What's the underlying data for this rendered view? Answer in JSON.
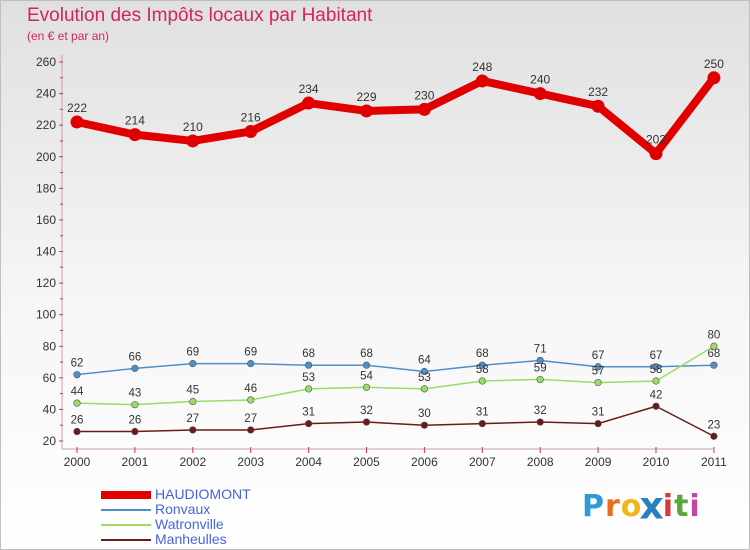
{
  "title": "Evolution des Impôts locaux par Habitant",
  "subtitle": "(en € et par an)",
  "chart_data": {
    "type": "line",
    "title": "Evolution des Impôts locaux par Habitant",
    "subtitle": "(en € et par an)",
    "xlabel": "",
    "ylabel": "",
    "categories": [
      "2000",
      "2001",
      "2002",
      "2003",
      "2004",
      "2005",
      "2006",
      "2007",
      "2008",
      "2009",
      "2010",
      "2011"
    ],
    "ylim": [
      20,
      260
    ],
    "yticks": [
      20,
      40,
      60,
      80,
      100,
      120,
      140,
      160,
      180,
      200,
      220,
      240,
      260
    ],
    "grid": false,
    "series": [
      {
        "name": "HAUDIOMONT",
        "color": "#e00000",
        "emphasis": true,
        "values": [
          222,
          214,
          210,
          216,
          234,
          229,
          230,
          248,
          240,
          232,
          202,
          250
        ],
        "labels": [
          "222",
          "214",
          "210",
          "216",
          "234",
          "229",
          "230",
          "248",
          "240",
          "232",
          "202",
          "250"
        ]
      },
      {
        "name": "Ronvaux",
        "color": "#4f8fc6",
        "values": [
          62,
          66,
          69,
          69,
          68,
          68,
          64,
          68,
          71,
          67,
          67,
          68
        ],
        "labels": [
          "62",
          "66",
          "69",
          "69",
          "68",
          "68",
          "64",
          "68",
          "71",
          "67",
          "67",
          "68"
        ]
      },
      {
        "name": "Watronville",
        "color": "#99dd66",
        "values": [
          44,
          43,
          45,
          46,
          53,
          54,
          53,
          58,
          59,
          57,
          58,
          80
        ],
        "labels": [
          "44",
          "43",
          "45",
          "46",
          "53",
          "54",
          "53",
          "58",
          "59",
          "57",
          "58",
          "80"
        ]
      },
      {
        "name": "Manheulles",
        "color": "#6b1a1a",
        "values": [
          26,
          26,
          27,
          27,
          31,
          32,
          30,
          31,
          32,
          31,
          42,
          23
        ],
        "labels": [
          "26",
          "26",
          "27",
          "27",
          "31",
          "32",
          "30",
          "31",
          "32",
          "31",
          "42",
          "23"
        ]
      }
    ]
  },
  "legend": [
    {
      "label": "HAUDIOMONT",
      "color": "#e00000"
    },
    {
      "label": "Ronvaux",
      "color": "#4f8fc6"
    },
    {
      "label": "Watronville",
      "color": "#99dd66"
    },
    {
      "label": "Manheulles",
      "color": "#6b1a1a"
    }
  ],
  "logo": {
    "letters": [
      "P",
      "r",
      "o",
      "x",
      "i",
      "t",
      "i"
    ],
    "colors": [
      "#2e9ad8",
      "#e86f1c",
      "#f2b418",
      "#2a7fc0",
      "#d8383a",
      "#5aa83c",
      "#c04aa0"
    ]
  }
}
